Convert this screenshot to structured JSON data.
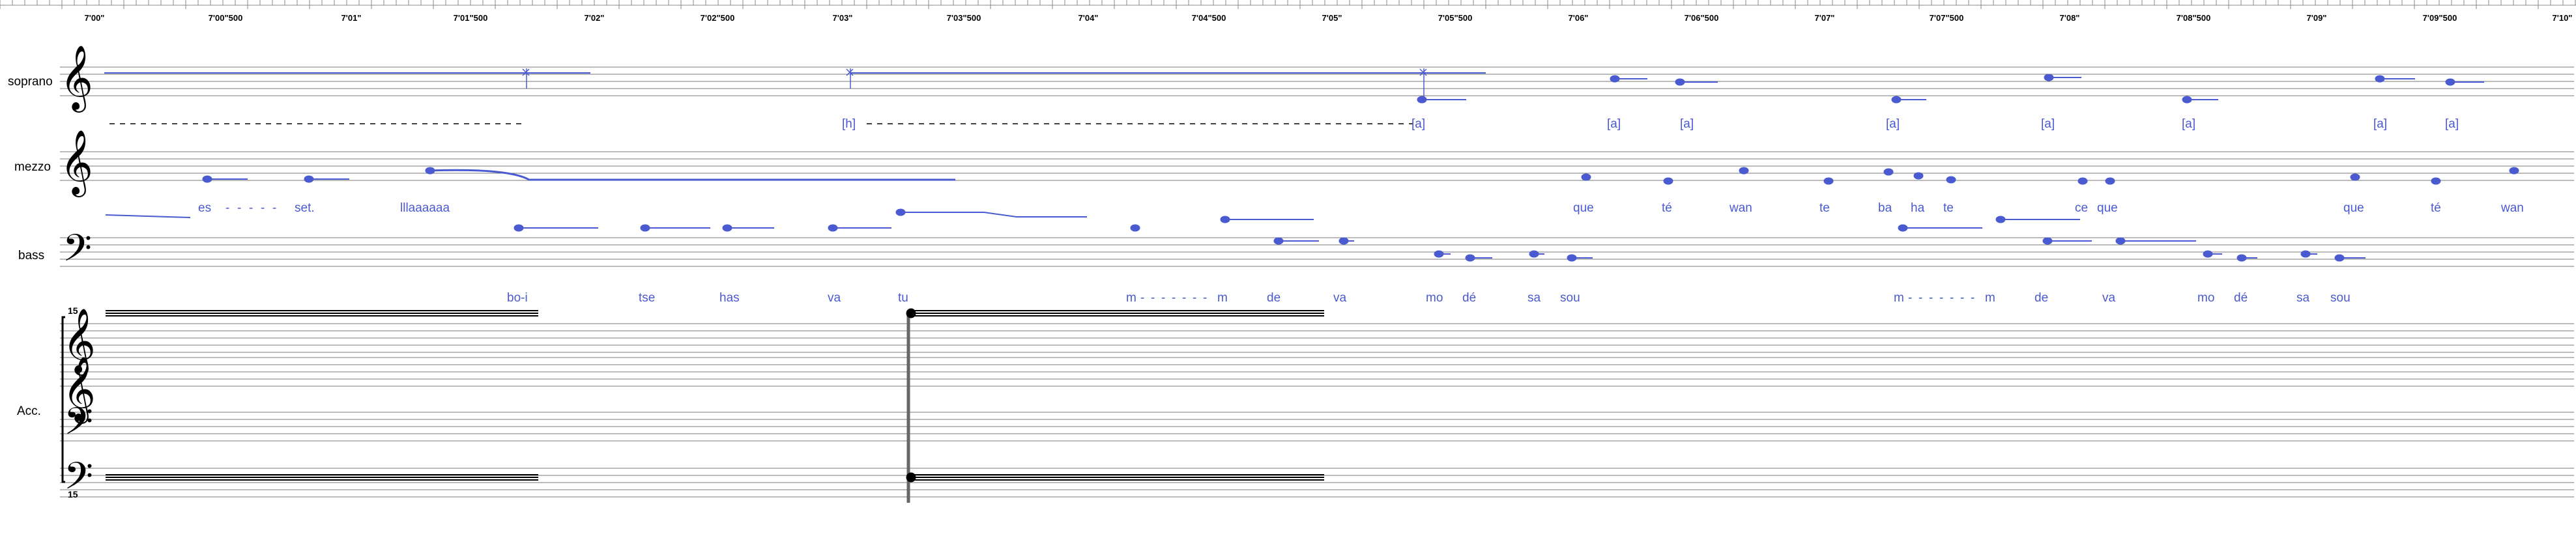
{
  "timeline": {
    "labels": [
      "7'00\"",
      "7'00\"500",
      "7'01\"",
      "7'01\"500",
      "7'02\"",
      "7'02\"500",
      "7'03\"",
      "7'03\"500",
      "7'04\"",
      "7'04\"500",
      "7'05\"",
      "7'05\"500",
      "7'06\"",
      "7'06\"500",
      "7'07\"",
      "7'07\"500",
      "7'08\"",
      "7'08\"500",
      "7'09\"",
      "7'09\"500",
      "7'10\""
    ]
  },
  "staves": {
    "soprano": {
      "name": "soprano",
      "clef": "treble-clef-icon",
      "lyrics": [
        "[h]",
        "[a]",
        "[a]",
        "[a]",
        "[a]",
        "[a]",
        "[a]",
        "[a]",
        "[a]"
      ]
    },
    "mezzo": {
      "name": "mezzo",
      "clef": "treble-clef-icon",
      "lyrics": [
        "es",
        "-",
        "-",
        "-",
        "-",
        "-",
        "set.",
        "lllaaaaaa",
        "que",
        "té",
        "wan",
        "te",
        "ba",
        "ha",
        "te",
        "ce",
        "que",
        "que",
        "té",
        "wan"
      ]
    },
    "bass": {
      "name": "bass",
      "clef": "bass-clef-icon",
      "lyrics": [
        "bo-i",
        "tse",
        "has",
        "va",
        "tu",
        "m",
        "-",
        "-",
        "-",
        "-",
        "-",
        "-",
        "-",
        "m",
        "de",
        "va",
        "mo",
        "dé",
        "sa",
        "sou",
        "m",
        "-",
        "-",
        "-",
        "-",
        "-",
        "-",
        "-",
        "m",
        "de",
        "va",
        "mo",
        "dé",
        "sa",
        "sou"
      ]
    },
    "accordion": {
      "name": "Acc.",
      "octave_marks": [
        "15",
        "15"
      ]
    }
  },
  "colors": {
    "note": "#4a5ad0",
    "staff": "#555555",
    "text": "#000000"
  }
}
